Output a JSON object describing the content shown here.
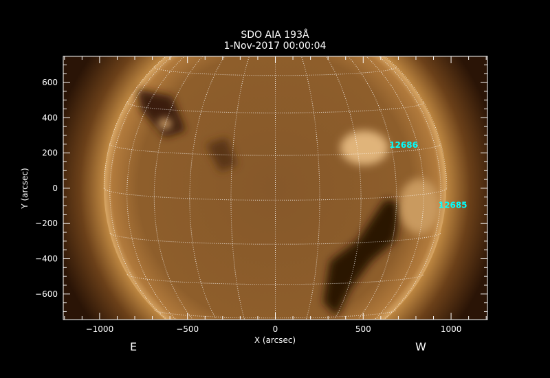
{
  "title": "SDO AIA 193Å",
  "subtitle": "1-Nov-2017 00:00:04",
  "xlabel": "X (arcsec)",
  "ylabel": "Y (arcsec)",
  "x_range": [
    -1207,
    1207
  ],
  "y_range": [
    -745,
    748
  ],
  "x_ticks": [
    -1000,
    -500,
    0,
    500,
    1000
  ],
  "x_tick_labels": [
    "−1000",
    "−500",
    "0",
    "500",
    "1000"
  ],
  "y_ticks": [
    -600,
    -400,
    -200,
    0,
    200,
    400,
    600
  ],
  "y_tick_labels": [
    "−600",
    "−400",
    "−200",
    "0",
    "200",
    "400",
    "600"
  ],
  "east_label": "E",
  "west_label": "W",
  "solar_radius_arcsec": 975,
  "grid_spacing_deg": 15,
  "b0_deg": 4,
  "active_regions": [
    {
      "label": "12686",
      "x": 730,
      "y": 250
    },
    {
      "label": "12685",
      "x": 1010,
      "y": -93
    }
  ],
  "colors": {
    "annotation": "#00ffff",
    "disk": "#8a5a26",
    "grid": "#ffffff"
  }
}
